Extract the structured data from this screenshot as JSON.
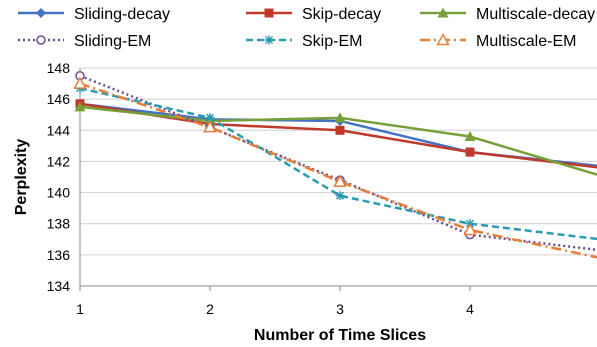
{
  "chart_data": {
    "type": "line",
    "xlabel": "Number of Time Slices",
    "ylabel": "Perplexity",
    "x": [
      1,
      2,
      3,
      4,
      5
    ],
    "xticks": [
      "1",
      "2",
      "3",
      "4",
      ""
    ],
    "ylim": [
      134,
      148
    ],
    "yticks": [
      "134",
      "136",
      "138",
      "140",
      "142",
      "144",
      "146",
      "148"
    ],
    "grid": "horizontal",
    "legend": "top",
    "series": [
      {
        "name": "Sliding-decay",
        "values": [
          145.7,
          144.7,
          144.6,
          142.6,
          141.7
        ],
        "color": "#4472C4",
        "dash": "solid",
        "marker": "diamond"
      },
      {
        "name": "Skip-decay",
        "values": [
          145.7,
          144.4,
          144.0,
          142.6,
          141.6
        ],
        "color": "#C0392B",
        "dash": "solid",
        "marker": "square"
      },
      {
        "name": "Multiscale-decay",
        "values": [
          145.5,
          144.6,
          144.8,
          143.6,
          141.1
        ],
        "color": "#77A03A",
        "dash": "solid",
        "marker": "triangle"
      },
      {
        "name": "Sliding-EM",
        "values": [
          147.5,
          144.2,
          140.8,
          137.3,
          136.3
        ],
        "color": "#6A4C93",
        "dash": "dot",
        "marker": "circle-open"
      },
      {
        "name": "Skip-EM",
        "values": [
          146.7,
          144.8,
          139.8,
          138.0,
          137.0
        ],
        "color": "#2A9BB0",
        "dash": "dash",
        "marker": "asterisk"
      },
      {
        "name": "Multiscale-EM",
        "values": [
          147.0,
          144.2,
          140.7,
          137.6,
          135.8
        ],
        "color": "#E67E3A",
        "dash": "dashdot",
        "marker": "triangle-open"
      }
    ]
  }
}
